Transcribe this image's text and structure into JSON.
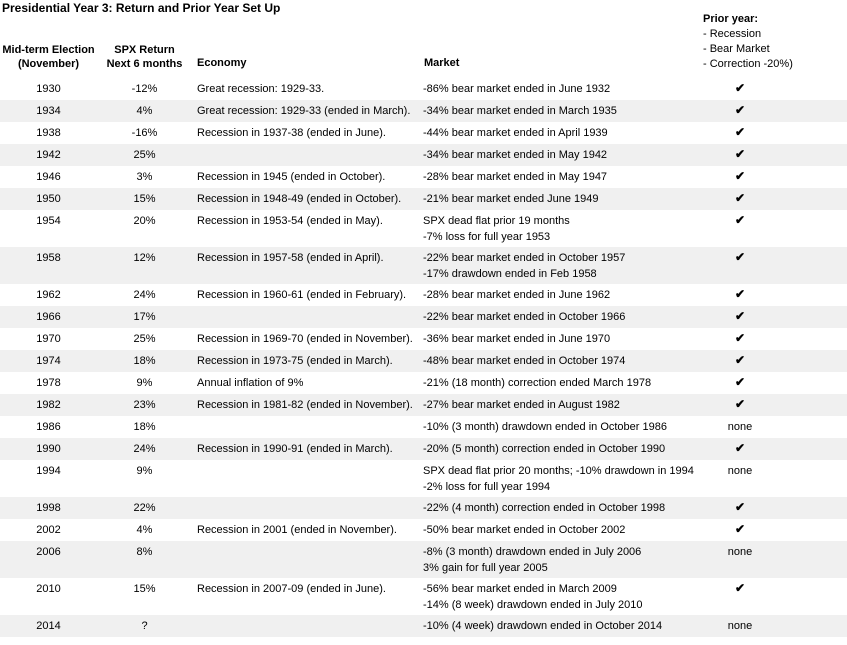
{
  "title": "Presidential Year 3: Return and Prior Year Set Up",
  "columns": {
    "election_line1": "Mid-term Election",
    "election_line2": "(November)",
    "spx_line1": "SPX Return",
    "spx_line2": "Next 6 months",
    "economy": "Economy",
    "market": "Market",
    "prior_title": "Prior year:",
    "prior_items": [
      "- Recession",
      "- Bear Market",
      "- Correction -20%)"
    ]
  },
  "check_glyph": "✔",
  "colors": {
    "stripe_gray": "#f0f0f0",
    "text": "#000000"
  },
  "rows": [
    {
      "year": "1930",
      "spx": "-12%",
      "economy": "Great recession: 1929-33.",
      "market": [
        "-86% bear market ended in June 1932"
      ],
      "prior": "✔"
    },
    {
      "year": "1934",
      "spx": "4%",
      "economy": "Great recession: 1929-33 (ended in March).",
      "market": [
        "-34% bear market ended in March 1935"
      ],
      "prior": "✔"
    },
    {
      "year": "1938",
      "spx": "-16%",
      "economy": "Recession in 1937-38 (ended in June).",
      "market": [
        "-44% bear market ended in April 1939"
      ],
      "prior": "✔"
    },
    {
      "year": "1942",
      "spx": "25%",
      "economy": "",
      "market": [
        "-34% bear market ended in May 1942"
      ],
      "prior": "✔"
    },
    {
      "year": "1946",
      "spx": "3%",
      "economy": "Recession in 1945 (ended in October).",
      "market": [
        "-28% bear market ended in May 1947"
      ],
      "prior": "✔"
    },
    {
      "year": "1950",
      "spx": "15%",
      "economy": "Recession in 1948-49 (ended in October).",
      "market": [
        "-21% bear market ended June 1949"
      ],
      "prior": "✔"
    },
    {
      "year": "1954",
      "spx": "20%",
      "economy": "Recession in 1953-54 (ended in May).",
      "market": [
        "SPX dead flat prior 19 months",
        "-7% loss for full year 1953"
      ],
      "prior": "✔"
    },
    {
      "year": "1958",
      "spx": "12%",
      "economy": "Recession in 1957-58 (ended in April).",
      "market": [
        "-22% bear market ended in October 1957",
        "-17% drawdown ended in Feb 1958"
      ],
      "prior": "✔"
    },
    {
      "year": "1962",
      "spx": "24%",
      "economy": "Recession in 1960-61 (ended in February).",
      "market": [
        "-28% bear market ended in June 1962"
      ],
      "prior": "✔"
    },
    {
      "year": "1966",
      "spx": "17%",
      "economy": "",
      "market": [
        "-22% bear market ended in October 1966"
      ],
      "prior": "✔"
    },
    {
      "year": "1970",
      "spx": "25%",
      "economy": "Recession in 1969-70 (ended in November).",
      "market": [
        "-36% bear market ended in June 1970"
      ],
      "prior": "✔"
    },
    {
      "year": "1974",
      "spx": "18%",
      "economy": "Recession in 1973-75 (ended in March).",
      "market": [
        "-48% bear market ended in October 1974"
      ],
      "prior": "✔"
    },
    {
      "year": "1978",
      "spx": "9%",
      "economy": "Annual inflation of 9%",
      "market": [
        "-21% (18 month) correction ended March 1978"
      ],
      "prior": "✔"
    },
    {
      "year": "1982",
      "spx": "23%",
      "economy": "Recession in 1981-82 (ended in November).",
      "market": [
        "-27% bear market ended in August 1982"
      ],
      "prior": "✔"
    },
    {
      "year": "1986",
      "spx": "18%",
      "economy": "",
      "market": [
        "-10% (3 month) drawdown ended in October 1986"
      ],
      "prior": "none"
    },
    {
      "year": "1990",
      "spx": "24%",
      "economy": "Recession in 1990-91 (ended in March).",
      "market": [
        "-20% (5 month) correction ended in October 1990"
      ],
      "prior": "✔"
    },
    {
      "year": "1994",
      "spx": "9%",
      "economy": "",
      "market": [
        "SPX dead flat prior 20 months; -10% drawdown in 1994",
        "-2% loss for full year 1994"
      ],
      "prior": "none"
    },
    {
      "year": "1998",
      "spx": "22%",
      "economy": "",
      "market": [
        "-22% (4 month) correction ended in October 1998"
      ],
      "prior": "✔"
    },
    {
      "year": "2002",
      "spx": "4%",
      "economy": "Recession in 2001 (ended in November).",
      "market": [
        "-50% bear market ended in October 2002"
      ],
      "prior": "✔"
    },
    {
      "year": "2006",
      "spx": "8%",
      "economy": "",
      "market": [
        "-8% (3 month) drawdown ended in July 2006",
        "3% gain for full year 2005"
      ],
      "prior": "none"
    },
    {
      "year": "2010",
      "spx": "15%",
      "economy": "Recession in 2007-09 (ended in June).",
      "market": [
        "-56% bear market ended in March 2009",
        "-14% (8 week) drawdown ended in July 2010"
      ],
      "prior": "✔"
    },
    {
      "year": "2014",
      "spx": "?",
      "economy": "",
      "market": [
        "-10% (4 week) drawdown ended in October 2014"
      ],
      "prior": "none"
    }
  ]
}
